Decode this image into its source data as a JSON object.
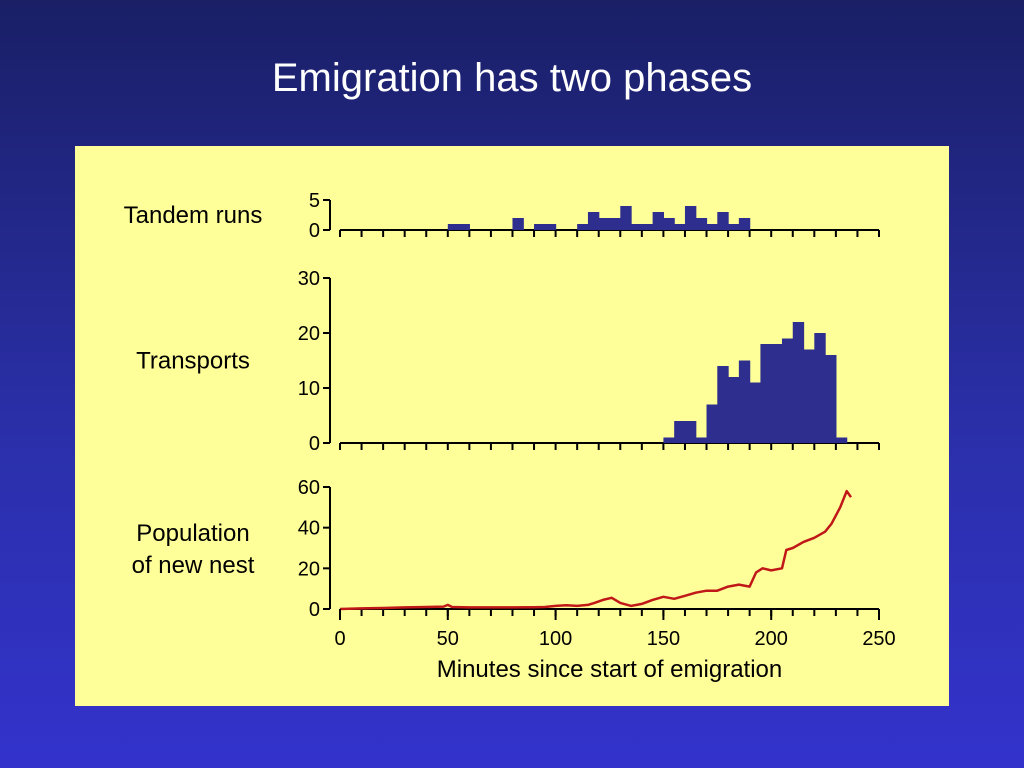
{
  "slide": {
    "title": "Emigration has two phases"
  },
  "colors": {
    "bar": "#2e2e8f",
    "line": "#c01818",
    "panel": "#ffff99",
    "axis": "#000000"
  },
  "chart_data": [
    {
      "type": "bar",
      "ylabel": "Tandem runs",
      "xlim": [
        0,
        250
      ],
      "ylim": [
        0,
        5
      ],
      "yticks": [
        0,
        5
      ],
      "bin_width": 5,
      "bins": [
        {
          "x": 50,
          "value": 1
        },
        {
          "x": 55,
          "value": 1
        },
        {
          "x": 80,
          "value": 2
        },
        {
          "x": 90,
          "value": 1
        },
        {
          "x": 95,
          "value": 1
        },
        {
          "x": 110,
          "value": 1
        },
        {
          "x": 115,
          "value": 3
        },
        {
          "x": 120,
          "value": 2
        },
        {
          "x": 125,
          "value": 2
        },
        {
          "x": 130,
          "value": 4
        },
        {
          "x": 135,
          "value": 1
        },
        {
          "x": 140,
          "value": 1
        },
        {
          "x": 145,
          "value": 3
        },
        {
          "x": 150,
          "value": 2
        },
        {
          "x": 155,
          "value": 1
        },
        {
          "x": 160,
          "value": 4
        },
        {
          "x": 165,
          "value": 2
        },
        {
          "x": 170,
          "value": 1
        },
        {
          "x": 175,
          "value": 3
        },
        {
          "x": 180,
          "value": 1
        },
        {
          "x": 185,
          "value": 2
        }
      ]
    },
    {
      "type": "bar",
      "ylabel": "Transports",
      "xlim": [
        0,
        250
      ],
      "ylim": [
        0,
        30
      ],
      "yticks": [
        0,
        10,
        20,
        30
      ],
      "bin_width": 5,
      "bins": [
        {
          "x": 150,
          "value": 1
        },
        {
          "x": 155,
          "value": 4
        },
        {
          "x": 160,
          "value": 4
        },
        {
          "x": 165,
          "value": 1
        },
        {
          "x": 170,
          "value": 7
        },
        {
          "x": 175,
          "value": 14
        },
        {
          "x": 180,
          "value": 12
        },
        {
          "x": 185,
          "value": 15
        },
        {
          "x": 190,
          "value": 11
        },
        {
          "x": 195,
          "value": 18
        },
        {
          "x": 200,
          "value": 18
        },
        {
          "x": 205,
          "value": 19
        },
        {
          "x": 210,
          "value": 22
        },
        {
          "x": 215,
          "value": 17
        },
        {
          "x": 220,
          "value": 20
        },
        {
          "x": 225,
          "value": 16
        },
        {
          "x": 230,
          "value": 1
        }
      ]
    },
    {
      "type": "line",
      "ylabel": "Population\nof new nest",
      "xlabel": "Minutes since start of emigration",
      "xlim": [
        0,
        250
      ],
      "ylim": [
        0,
        60
      ],
      "yticks": [
        0,
        20,
        40,
        60
      ],
      "xticks": [
        0,
        50,
        100,
        150,
        200,
        250
      ],
      "x": [
        0,
        10,
        20,
        30,
        40,
        48,
        50,
        52,
        60,
        70,
        80,
        90,
        95,
        100,
        105,
        110,
        115,
        118,
        122,
        126,
        130,
        135,
        140,
        145,
        150,
        155,
        160,
        165,
        170,
        175,
        180,
        185,
        190,
        193,
        196,
        200,
        205,
        207,
        210,
        215,
        220,
        225,
        228,
        232,
        235,
        237
      ],
      "y": [
        0,
        0.3,
        0.5,
        0.8,
        1.0,
        1.2,
        2.0,
        1.0,
        0.8,
        0.8,
        0.8,
        0.9,
        1.0,
        1.5,
        1.8,
        1.5,
        2.0,
        3.0,
        4.5,
        5.5,
        3.0,
        1.5,
        2.5,
        4.5,
        6.0,
        5.0,
        6.5,
        8.0,
        9.0,
        9.0,
        11.0,
        12.0,
        11.0,
        18.0,
        20.0,
        19.0,
        20.0,
        29.0,
        30.0,
        33.0,
        35.0,
        38.0,
        42.0,
        50.0,
        58.0,
        55.0
      ]
    }
  ]
}
